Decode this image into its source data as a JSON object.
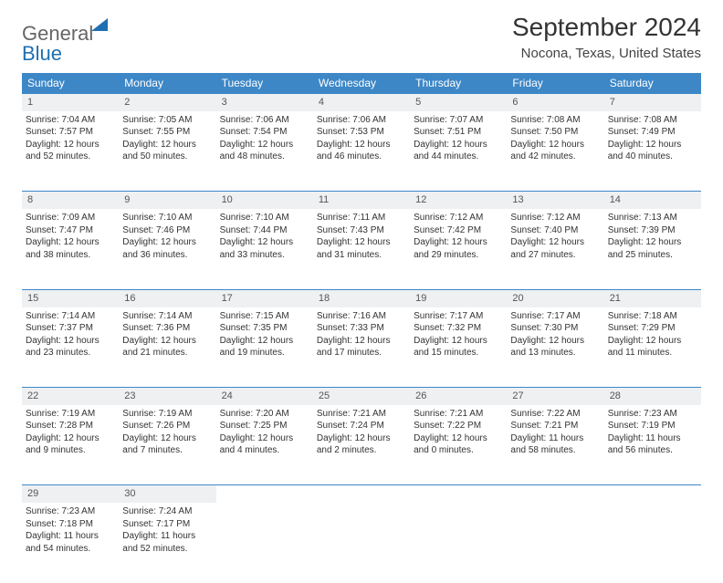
{
  "logo": {
    "part1": "General",
    "part2": "Blue"
  },
  "title": "September 2024",
  "location": "Nocona, Texas, United States",
  "colors": {
    "header_bg": "#3d87c7",
    "header_text": "#ffffff",
    "border": "#3d87c7",
    "daynum_bg": "#eef0f2",
    "body_text": "#333333",
    "logo_gray": "#666666",
    "logo_blue": "#1f6fb2",
    "page_bg": "#ffffff"
  },
  "typography": {
    "title_fontsize": 28,
    "location_fontsize": 15,
    "dayheader_fontsize": 12,
    "cell_fontsize": 10
  },
  "dayHeaders": [
    "Sunday",
    "Monday",
    "Tuesday",
    "Wednesday",
    "Thursday",
    "Friday",
    "Saturday"
  ],
  "weeks": [
    [
      {
        "num": "1",
        "sunrise": "Sunrise: 7:04 AM",
        "sunset": "Sunset: 7:57 PM",
        "daylight": "Daylight: 12 hours and 52 minutes."
      },
      {
        "num": "2",
        "sunrise": "Sunrise: 7:05 AM",
        "sunset": "Sunset: 7:55 PM",
        "daylight": "Daylight: 12 hours and 50 minutes."
      },
      {
        "num": "3",
        "sunrise": "Sunrise: 7:06 AM",
        "sunset": "Sunset: 7:54 PM",
        "daylight": "Daylight: 12 hours and 48 minutes."
      },
      {
        "num": "4",
        "sunrise": "Sunrise: 7:06 AM",
        "sunset": "Sunset: 7:53 PM",
        "daylight": "Daylight: 12 hours and 46 minutes."
      },
      {
        "num": "5",
        "sunrise": "Sunrise: 7:07 AM",
        "sunset": "Sunset: 7:51 PM",
        "daylight": "Daylight: 12 hours and 44 minutes."
      },
      {
        "num": "6",
        "sunrise": "Sunrise: 7:08 AM",
        "sunset": "Sunset: 7:50 PM",
        "daylight": "Daylight: 12 hours and 42 minutes."
      },
      {
        "num": "7",
        "sunrise": "Sunrise: 7:08 AM",
        "sunset": "Sunset: 7:49 PM",
        "daylight": "Daylight: 12 hours and 40 minutes."
      }
    ],
    [
      {
        "num": "8",
        "sunrise": "Sunrise: 7:09 AM",
        "sunset": "Sunset: 7:47 PM",
        "daylight": "Daylight: 12 hours and 38 minutes."
      },
      {
        "num": "9",
        "sunrise": "Sunrise: 7:10 AM",
        "sunset": "Sunset: 7:46 PM",
        "daylight": "Daylight: 12 hours and 36 minutes."
      },
      {
        "num": "10",
        "sunrise": "Sunrise: 7:10 AM",
        "sunset": "Sunset: 7:44 PM",
        "daylight": "Daylight: 12 hours and 33 minutes."
      },
      {
        "num": "11",
        "sunrise": "Sunrise: 7:11 AM",
        "sunset": "Sunset: 7:43 PM",
        "daylight": "Daylight: 12 hours and 31 minutes."
      },
      {
        "num": "12",
        "sunrise": "Sunrise: 7:12 AM",
        "sunset": "Sunset: 7:42 PM",
        "daylight": "Daylight: 12 hours and 29 minutes."
      },
      {
        "num": "13",
        "sunrise": "Sunrise: 7:12 AM",
        "sunset": "Sunset: 7:40 PM",
        "daylight": "Daylight: 12 hours and 27 minutes."
      },
      {
        "num": "14",
        "sunrise": "Sunrise: 7:13 AM",
        "sunset": "Sunset: 7:39 PM",
        "daylight": "Daylight: 12 hours and 25 minutes."
      }
    ],
    [
      {
        "num": "15",
        "sunrise": "Sunrise: 7:14 AM",
        "sunset": "Sunset: 7:37 PM",
        "daylight": "Daylight: 12 hours and 23 minutes."
      },
      {
        "num": "16",
        "sunrise": "Sunrise: 7:14 AM",
        "sunset": "Sunset: 7:36 PM",
        "daylight": "Daylight: 12 hours and 21 minutes."
      },
      {
        "num": "17",
        "sunrise": "Sunrise: 7:15 AM",
        "sunset": "Sunset: 7:35 PM",
        "daylight": "Daylight: 12 hours and 19 minutes."
      },
      {
        "num": "18",
        "sunrise": "Sunrise: 7:16 AM",
        "sunset": "Sunset: 7:33 PM",
        "daylight": "Daylight: 12 hours and 17 minutes."
      },
      {
        "num": "19",
        "sunrise": "Sunrise: 7:17 AM",
        "sunset": "Sunset: 7:32 PM",
        "daylight": "Daylight: 12 hours and 15 minutes."
      },
      {
        "num": "20",
        "sunrise": "Sunrise: 7:17 AM",
        "sunset": "Sunset: 7:30 PM",
        "daylight": "Daylight: 12 hours and 13 minutes."
      },
      {
        "num": "21",
        "sunrise": "Sunrise: 7:18 AM",
        "sunset": "Sunset: 7:29 PM",
        "daylight": "Daylight: 12 hours and 11 minutes."
      }
    ],
    [
      {
        "num": "22",
        "sunrise": "Sunrise: 7:19 AM",
        "sunset": "Sunset: 7:28 PM",
        "daylight": "Daylight: 12 hours and 9 minutes."
      },
      {
        "num": "23",
        "sunrise": "Sunrise: 7:19 AM",
        "sunset": "Sunset: 7:26 PM",
        "daylight": "Daylight: 12 hours and 7 minutes."
      },
      {
        "num": "24",
        "sunrise": "Sunrise: 7:20 AM",
        "sunset": "Sunset: 7:25 PM",
        "daylight": "Daylight: 12 hours and 4 minutes."
      },
      {
        "num": "25",
        "sunrise": "Sunrise: 7:21 AM",
        "sunset": "Sunset: 7:24 PM",
        "daylight": "Daylight: 12 hours and 2 minutes."
      },
      {
        "num": "26",
        "sunrise": "Sunrise: 7:21 AM",
        "sunset": "Sunset: 7:22 PM",
        "daylight": "Daylight: 12 hours and 0 minutes."
      },
      {
        "num": "27",
        "sunrise": "Sunrise: 7:22 AM",
        "sunset": "Sunset: 7:21 PM",
        "daylight": "Daylight: 11 hours and 58 minutes."
      },
      {
        "num": "28",
        "sunrise": "Sunrise: 7:23 AM",
        "sunset": "Sunset: 7:19 PM",
        "daylight": "Daylight: 11 hours and 56 minutes."
      }
    ],
    [
      {
        "num": "29",
        "sunrise": "Sunrise: 7:23 AM",
        "sunset": "Sunset: 7:18 PM",
        "daylight": "Daylight: 11 hours and 54 minutes."
      },
      {
        "num": "30",
        "sunrise": "Sunrise: 7:24 AM",
        "sunset": "Sunset: 7:17 PM",
        "daylight": "Daylight: 11 hours and 52 minutes."
      },
      null,
      null,
      null,
      null,
      null
    ]
  ]
}
